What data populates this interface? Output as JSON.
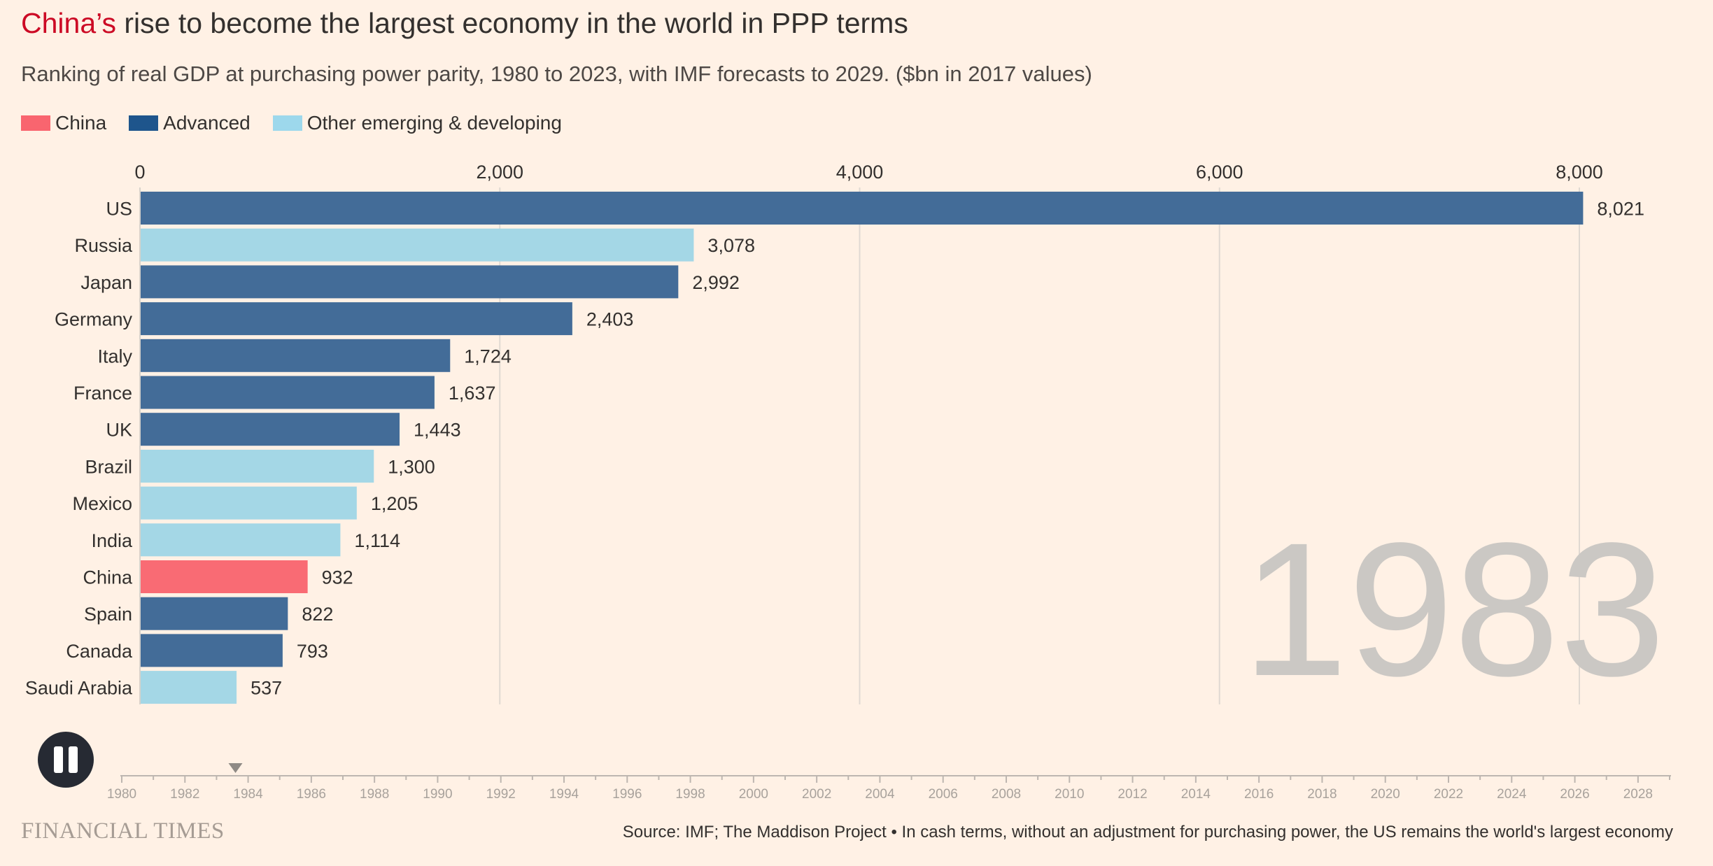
{
  "title": {
    "highlight": "China’s",
    "rest": " rise to become the largest economy in the world in PPP terms"
  },
  "subtitle": "Ranking of real GDP at purchasing power parity, 1980 to 2023, with IMF forecasts to 2029. ($bn in 2017 values)",
  "legend": [
    {
      "label": "China",
      "color": "#f9656f"
    },
    {
      "label": "Advanced",
      "color": "#1e558c"
    },
    {
      "label": "Other emerging & developing",
      "color": "#9dd8ec"
    }
  ],
  "colors": {
    "China": "#f96b74",
    "Advanced": "#436c98",
    "Other": "#a4d7e6",
    "background": "#fff1e5",
    "year_watermark": "#cbc8c4"
  },
  "chart_data": {
    "type": "bar",
    "orientation": "horizontal",
    "current_year": "1983",
    "categories": [
      "US",
      "Russia",
      "Japan",
      "Germany",
      "Italy",
      "France",
      "UK",
      "Brazil",
      "Mexico",
      "India",
      "China",
      "Spain",
      "Canada",
      "Saudi Arabia"
    ],
    "values": [
      8021,
      3078,
      2992,
      2403,
      1724,
      1637,
      1443,
      1300,
      1205,
      1114,
      932,
      822,
      793,
      537
    ],
    "value_labels": [
      "8,021",
      "3,078",
      "2,992",
      "2,403",
      "1,724",
      "1,637",
      "1,443",
      "1,300",
      "1,205",
      "1,114",
      "932",
      "822",
      "793",
      "537"
    ],
    "groups": [
      "Advanced",
      "Other",
      "Advanced",
      "Advanced",
      "Advanced",
      "Advanced",
      "Advanced",
      "Other",
      "Other",
      "Other",
      "China",
      "Advanced",
      "Advanced",
      "Other"
    ],
    "x_ticks": [
      0,
      2000,
      4000,
      6000,
      8000
    ],
    "x_tick_labels": [
      "0",
      "2,000",
      "4,000",
      "6,000",
      "8,000"
    ],
    "xlim": [
      0,
      8500
    ],
    "xlabel": "",
    "ylabel": "",
    "grid": true
  },
  "timeline": {
    "current_year": 1983.6,
    "year_start": 1980,
    "year_end": 2029,
    "labels": [
      "1980",
      "1982",
      "1984",
      "1986",
      "1988",
      "1990",
      "1992",
      "1994",
      "1996",
      "1998",
      "2000",
      "2002",
      "2004",
      "2006",
      "2008",
      "2010",
      "2012",
      "2014",
      "2016",
      "2018",
      "2020",
      "2022",
      "2024",
      "2026",
      "2028"
    ]
  },
  "logo": "FINANCIAL TIMES",
  "source": "Source: IMF; The Maddison Project • In cash terms, without an adjustment for purchasing power, the US remains the world's largest economy"
}
